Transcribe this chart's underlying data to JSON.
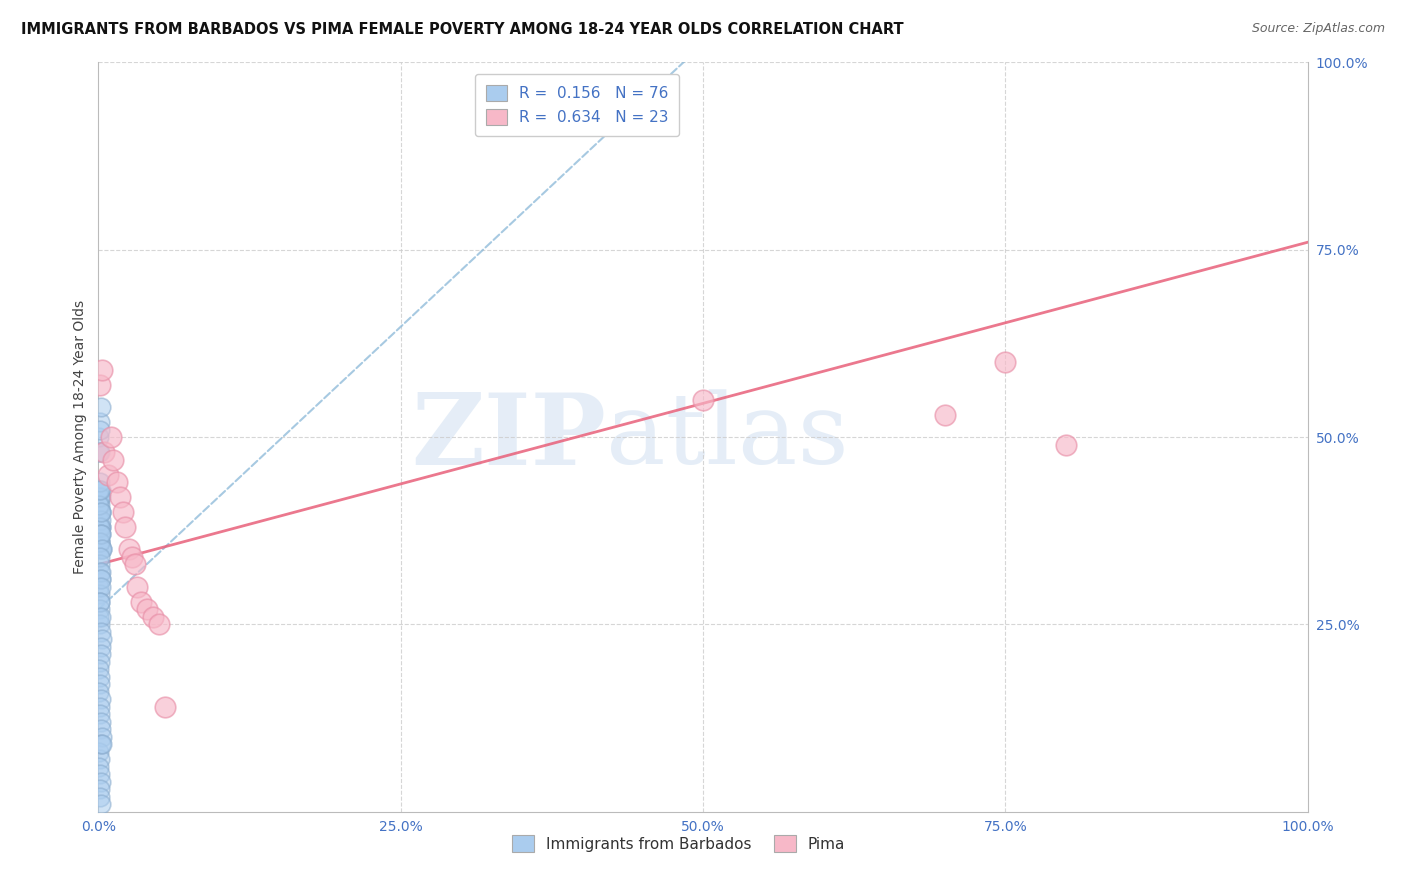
{
  "title": "IMMIGRANTS FROM BARBADOS VS PIMA FEMALE POVERTY AMONG 18-24 YEAR OLDS CORRELATION CHART",
  "source": "Source: ZipAtlas.com",
  "ylabel": "Female Poverty Among 18-24 Year Olds",
  "legend_label1": "Immigrants from Barbados",
  "legend_label2": "Pima",
  "r1": 0.156,
  "n1": 76,
  "r2": 0.634,
  "n2": 23,
  "blue_color": "#aaccee",
  "blue_edge_color": "#88aacc",
  "pink_color": "#f7b8c8",
  "pink_edge_color": "#e890a8",
  "blue_line_color": "#8ab8d8",
  "pink_line_color": "#e8607a",
  "watermark_color": "#ccddf0",
  "xlim": [
    0.0,
    1.0
  ],
  "ylim": [
    0.0,
    1.0
  ],
  "x_ticks": [
    0.0,
    0.25,
    0.5,
    0.75,
    1.0
  ],
  "x_labels": [
    "0.0%",
    "25.0%",
    "50.0%",
    "75.0%",
    "100.0%"
  ],
  "y_ticks": [
    0.25,
    0.5,
    0.75,
    1.0
  ],
  "y_labels": [
    "25.0%",
    "50.0%",
    "75.0%",
    "100.0%"
  ],
  "blue_x": [
    0.0005,
    0.0008,
    0.001,
    0.0012,
    0.0015,
    0.001,
    0.0018,
    0.002,
    0.0022,
    0.002,
    0.0015,
    0.0008,
    0.001,
    0.0012,
    0.002,
    0.0025,
    0.003,
    0.002,
    0.0018,
    0.001,
    0.0005,
    0.001,
    0.0012,
    0.0008,
    0.002,
    0.0015,
    0.001,
    0.002,
    0.0025,
    0.003,
    0.001,
    0.0015,
    0.002,
    0.001,
    0.0008,
    0.0012,
    0.002,
    0.0018,
    0.0022,
    0.0015,
    0.001,
    0.0008,
    0.001,
    0.0012,
    0.002,
    0.0025,
    0.003,
    0.002,
    0.0018,
    0.001,
    0.0005,
    0.001,
    0.0012,
    0.0008,
    0.002,
    0.0015,
    0.001,
    0.002,
    0.0025,
    0.003,
    0.0005,
    0.001,
    0.0008,
    0.001,
    0.002,
    0.0015,
    0.001,
    0.002,
    0.0022,
    0.003,
    0.0005,
    0.0008,
    0.001,
    0.002,
    0.0015,
    0.001
  ],
  "blue_y": [
    0.35,
    0.38,
    0.4,
    0.42,
    0.37,
    0.36,
    0.4,
    0.38,
    0.35,
    0.42,
    0.36,
    0.39,
    0.41,
    0.37,
    0.43,
    0.38,
    0.35,
    0.4,
    0.39,
    0.42,
    0.43,
    0.44,
    0.38,
    0.41,
    0.37,
    0.36,
    0.43,
    0.4,
    0.37,
    0.35,
    0.33,
    0.32,
    0.31,
    0.34,
    0.3,
    0.29,
    0.32,
    0.31,
    0.3,
    0.28,
    0.27,
    0.26,
    0.25,
    0.28,
    0.26,
    0.24,
    0.23,
    0.22,
    0.21,
    0.2,
    0.19,
    0.18,
    0.17,
    0.16,
    0.15,
    0.14,
    0.13,
    0.12,
    0.11,
    0.1,
    0.08,
    0.07,
    0.06,
    0.05,
    0.04,
    0.03,
    0.02,
    0.01,
    0.09,
    0.09,
    0.48,
    0.5,
    0.52,
    0.54,
    0.48,
    0.51
  ],
  "pink_x": [
    0.001,
    0.003,
    0.005,
    0.008,
    0.01,
    0.012,
    0.015,
    0.018,
    0.02,
    0.022,
    0.025,
    0.028,
    0.03,
    0.032,
    0.035,
    0.04,
    0.045,
    0.05,
    0.055,
    0.5,
    0.7,
    0.75,
    0.8
  ],
  "pink_y": [
    0.57,
    0.59,
    0.48,
    0.45,
    0.5,
    0.47,
    0.44,
    0.42,
    0.4,
    0.38,
    0.35,
    0.34,
    0.33,
    0.3,
    0.28,
    0.27,
    0.26,
    0.25,
    0.14,
    0.55,
    0.53,
    0.6,
    0.49
  ],
  "blue_line": [
    0.0,
    0.55,
    0.27,
    1.1
  ],
  "pink_line": [
    0.0,
    1.0,
    0.33,
    0.76
  ]
}
